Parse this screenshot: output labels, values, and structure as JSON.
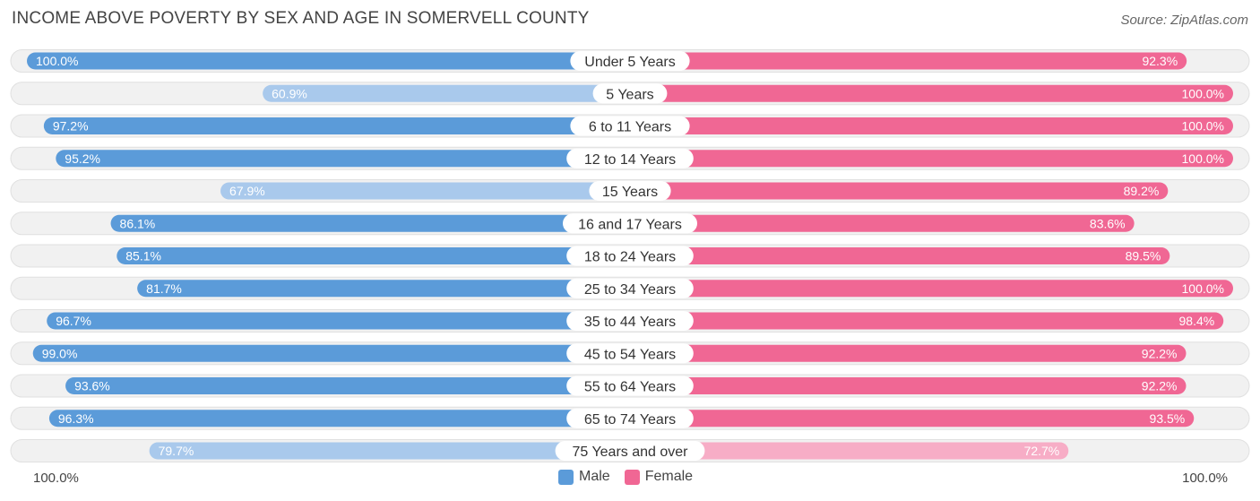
{
  "chart_data": {
    "type": "bar",
    "orientation": "horizontal-diverging",
    "title": "INCOME ABOVE POVERTY BY SEX AND AGE IN SOMERVELL COUNTY",
    "source": "Source: ZipAtlas.com",
    "categories": [
      "Under 5 Years",
      "5 Years",
      "6 to 11 Years",
      "12 to 14 Years",
      "15 Years",
      "16 and 17 Years",
      "18 to 24 Years",
      "25 to 34 Years",
      "35 to 44 Years",
      "45 to 54 Years",
      "55 to 64 Years",
      "65 to 74 Years",
      "75 Years and over"
    ],
    "series": [
      {
        "name": "Male",
        "values": [
          100.0,
          60.9,
          97.2,
          95.2,
          67.9,
          86.1,
          85.1,
          81.7,
          96.7,
          99.0,
          93.6,
          96.3,
          79.7
        ],
        "labels": [
          "100.0%",
          "60.9%",
          "97.2%",
          "95.2%",
          "67.9%",
          "86.1%",
          "85.1%",
          "81.7%",
          "96.7%",
          "99.0%",
          "93.6%",
          "96.3%",
          "79.7%"
        ]
      },
      {
        "name": "Female",
        "values": [
          92.3,
          100.0,
          100.0,
          100.0,
          89.2,
          83.6,
          89.5,
          100.0,
          98.4,
          92.2,
          92.2,
          93.5,
          72.7
        ],
        "labels": [
          "92.3%",
          "100.0%",
          "100.0%",
          "100.0%",
          "89.2%",
          "83.6%",
          "89.5%",
          "100.0%",
          "98.4%",
          "92.2%",
          "92.2%",
          "93.5%",
          "72.7%"
        ]
      }
    ],
    "xlim": [
      0,
      100
    ],
    "axis_left_label": "100.0%",
    "axis_right_label": "100.0%",
    "colors": {
      "male_strong": "#5b9bd9",
      "male_light": "#a9c9ec",
      "female_strong": "#f06794",
      "female_light": "#f7adc6",
      "row_bg": "#f1f1f1",
      "row_border": "#e0e0e0"
    }
  },
  "legend": {
    "male_label": "Male",
    "female_label": "Female"
  }
}
